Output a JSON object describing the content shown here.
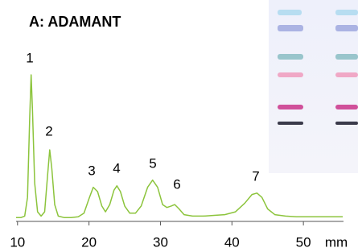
{
  "chart_data": {
    "type": "line",
    "title": "A: ADAMANT",
    "x_label": "mm",
    "x": [
      9.8,
      10.5,
      11.0,
      11.4,
      11.7,
      11.9,
      12.1,
      12.4,
      12.8,
      13.3,
      13.8,
      14.2,
      14.5,
      14.8,
      15.2,
      15.7,
      16.5,
      17.5,
      18.5,
      19.3,
      20.0,
      20.6,
      21.2,
      21.8,
      22.3,
      22.9,
      23.5,
      23.9,
      24.4,
      25.0,
      25.7,
      26.5,
      27.3,
      28.2,
      28.9,
      29.6,
      30.3,
      30.9,
      31.5,
      32.0,
      32.6,
      33.3,
      34.5,
      36,
      37.5,
      39,
      40.5,
      41.8,
      42.8,
      43.5,
      44.2,
      45.0,
      46,
      47.5,
      49,
      51,
      53,
      55.5
    ],
    "series": [
      {
        "color": "#8cc43c",
        "values": [
          1,
          1,
          2,
          15,
          70,
          100,
          75,
          25,
          5,
          2,
          5,
          30,
          48,
          35,
          10,
          2,
          1,
          1,
          1.5,
          4,
          14,
          22,
          19,
          9,
          5,
          10,
          20,
          23,
          19,
          9,
          4,
          4,
          9,
          22,
          27,
          22,
          10,
          8,
          9,
          10,
          7,
          3,
          2,
          2,
          2.5,
          3,
          5,
          11,
          17,
          18,
          15,
          7,
          3,
          2,
          1.5,
          1.5,
          1.5,
          1.5
        ]
      }
    ],
    "peak_labels": [
      "1",
      "2",
      "3",
      "4",
      "5",
      "6",
      "7"
    ],
    "xlim": [
      9.8,
      55.5
    ],
    "xticks": [
      10,
      20,
      30,
      40,
      50
    ],
    "ylim": [
      0,
      100
    ]
  }
}
